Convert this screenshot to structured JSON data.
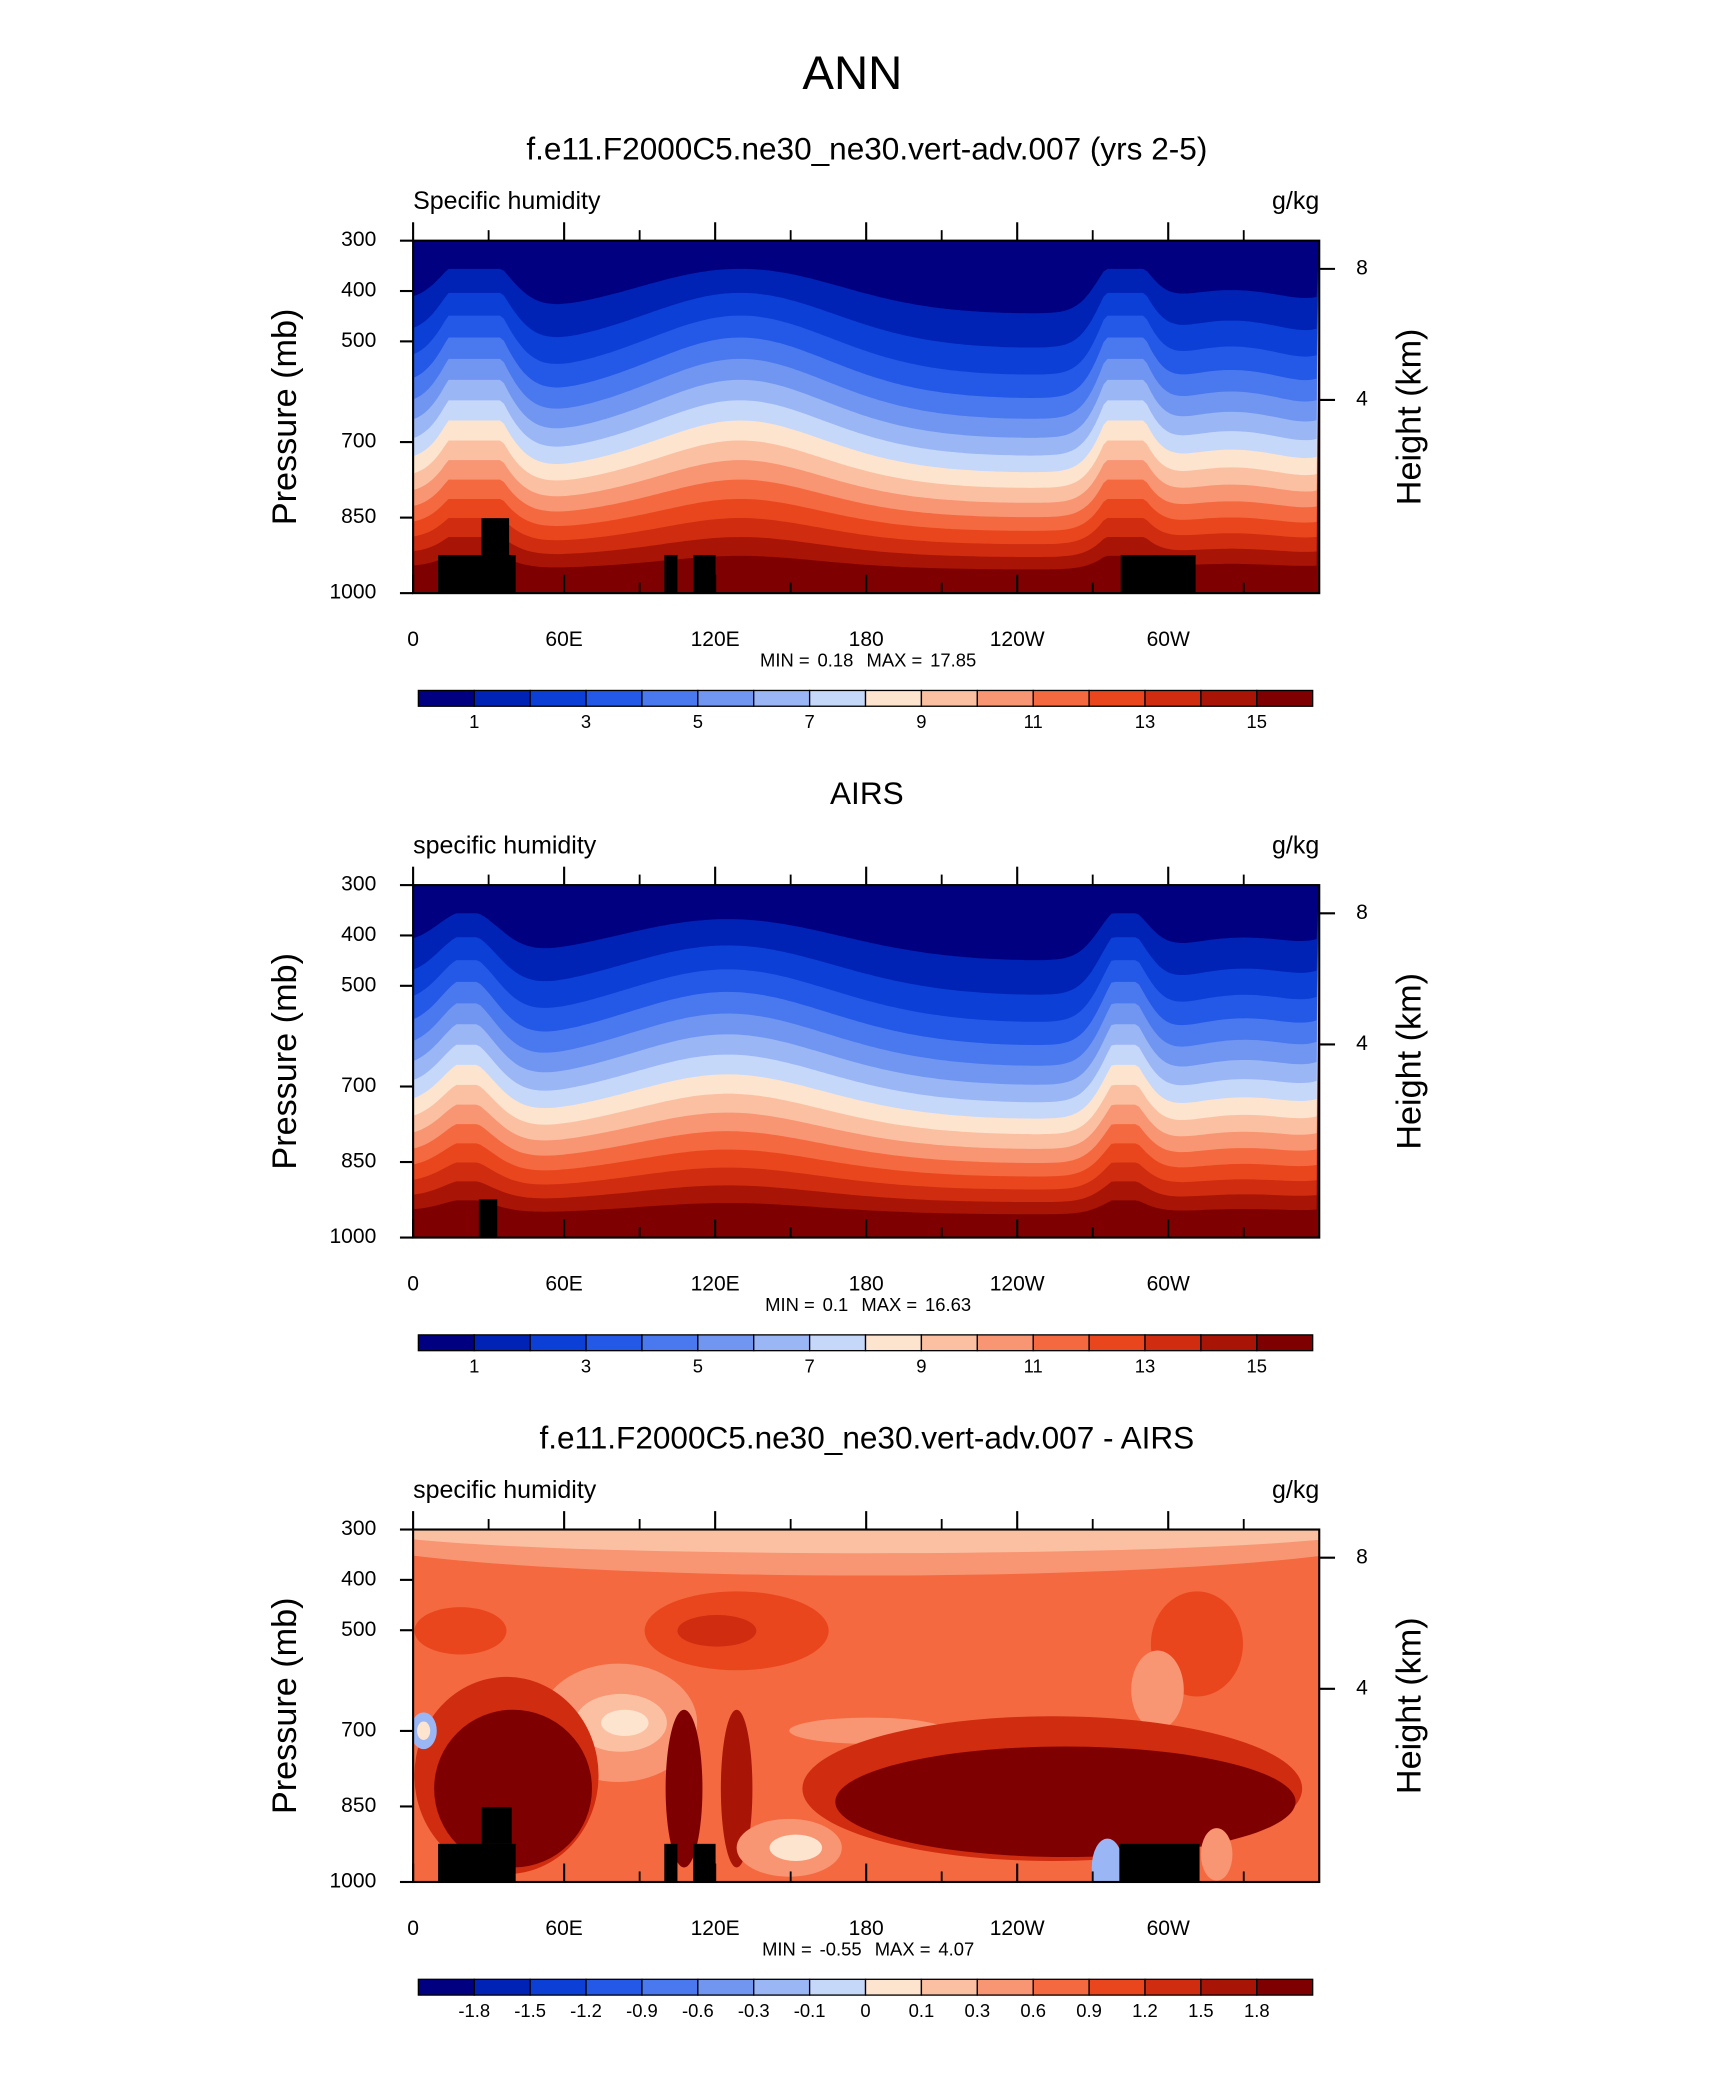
{
  "title": "ANN",
  "chart_data": [
    {
      "type": "contour",
      "title": "f.e11.F2000C5.ne30_ne30.vert-adv.007 (yrs 2-5)",
      "left_label": "Specific humidity",
      "units": "g/kg",
      "ylabel": "Pressure (mb)",
      "ylim": [
        1000,
        300
      ],
      "yticks": [
        300,
        400,
        500,
        700,
        850,
        1000
      ],
      "y2label": "Height (km)",
      "y2scale": "standard-atmosphere",
      "y2ticks": [
        4,
        8
      ],
      "xlim": [
        0,
        360
      ],
      "xticks": [
        0,
        {
          "value": 60,
          "label": "60E"
        },
        {
          "value": 120,
          "label": "120E"
        },
        180,
        {
          "value": 240,
          "label": "120W"
        },
        {
          "value": 300,
          "label": "60W"
        }
      ],
      "min_label": "MIN =",
      "min": 0.18,
      "max_label": "MAX =",
      "max": 17.85,
      "colorbar": {
        "colors": [
          "#000080",
          "#0022b5",
          "#0b3fd6",
          "#2458e6",
          "#4a78ee",
          "#7096f2",
          "#9ab6f5",
          "#c6d8fa",
          "#fde4cf",
          "#fbc0a2",
          "#f89573",
          "#f4693f",
          "#e9461d",
          "#cf2c10",
          "#a81405",
          "#7f0000"
        ],
        "range": [
          0,
          16
        ],
        "labels": [
          1,
          3,
          5,
          7,
          9,
          11,
          13,
          15
        ]
      }
    },
    {
      "type": "contour",
      "title": "AIRS",
      "left_label": "specific humidity",
      "units": "g/kg",
      "ylabel": "Pressure (mb)",
      "ylim": [
        1000,
        300
      ],
      "yticks": [
        300,
        400,
        500,
        700,
        850,
        1000
      ],
      "y2label": "Height (km)",
      "y2scale": "standard-atmosphere",
      "y2ticks": [
        4,
        8
      ],
      "xlim": [
        0,
        360
      ],
      "xticks": [
        0,
        {
          "value": 60,
          "label": "60E"
        },
        {
          "value": 120,
          "label": "120E"
        },
        180,
        {
          "value": 240,
          "label": "120W"
        },
        {
          "value": 300,
          "label": "60W"
        }
      ],
      "min_label": "MIN =",
      "min": 0.1,
      "max_label": "MAX =",
      "max": 16.63,
      "colorbar": {
        "colors": [
          "#000080",
          "#0022b5",
          "#0b3fd6",
          "#2458e6",
          "#4a78ee",
          "#7096f2",
          "#9ab6f5",
          "#c6d8fa",
          "#fde4cf",
          "#fbc0a2",
          "#f89573",
          "#f4693f",
          "#e9461d",
          "#cf2c10",
          "#a81405",
          "#7f0000"
        ],
        "range": [
          0,
          16
        ],
        "labels": [
          1,
          3,
          5,
          7,
          9,
          11,
          13,
          15
        ]
      }
    },
    {
      "type": "contour-diff",
      "title": "f.e11.F2000C5.ne30_ne30.vert-adv.007 - AIRS",
      "left_label": "specific humidity",
      "units": "g/kg",
      "ylabel": "Pressure (mb)",
      "ylim": [
        1000,
        300
      ],
      "yticks": [
        300,
        400,
        500,
        700,
        850,
        1000
      ],
      "y2label": "Height (km)",
      "y2scale": "standard-atmosphere",
      "y2ticks": [
        4,
        8
      ],
      "xlim": [
        0,
        360
      ],
      "xticks": [
        0,
        {
          "value": 60,
          "label": "60E"
        },
        {
          "value": 120,
          "label": "120E"
        },
        180,
        {
          "value": 240,
          "label": "120W"
        },
        {
          "value": 300,
          "label": "60W"
        }
      ],
      "min_label": "MIN =",
      "min": -0.55,
      "max_label": "MAX =",
      "max": 4.07,
      "colorbar": {
        "colors": [
          "#000080",
          "#0022b5",
          "#0b3fd6",
          "#2458e6",
          "#4a78ee",
          "#7096f2",
          "#9ab6f5",
          "#c6d8fa",
          "#fde4cf",
          "#fbc0a2",
          "#f89573",
          "#f4693f",
          "#e9461d",
          "#cf2c10",
          "#a81405",
          "#7f0000"
        ],
        "labels": [
          -1.8,
          -1.5,
          -1.2,
          -0.9,
          -0.6,
          -0.3,
          -0.1,
          0,
          0.1,
          0.3,
          0.6,
          0.9,
          1.2,
          1.5,
          1.8
        ]
      }
    }
  ]
}
